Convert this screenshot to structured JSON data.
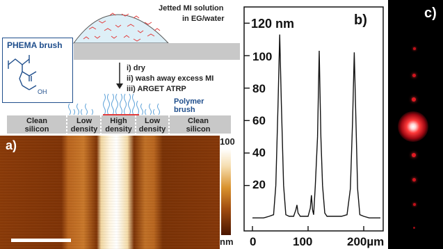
{
  "panel_a": {
    "letter": "a)",
    "jetted_line1": "Jetted MI solution",
    "jetted_line2": "in EG/water",
    "brush_title": "PHEMA brush",
    "oh_label": "OH",
    "step1": "i) dry",
    "step2": "ii) wash away excess MI",
    "step3": "iii) ARGET ATRP",
    "polymer_line1": "Polymer",
    "polymer_line2": "brush",
    "regions": [
      {
        "line1": "Clean",
        "line2": "silicon"
      },
      {
        "line1": "Low",
        "line2": "density"
      },
      {
        "line1": "High",
        "line2": "density"
      },
      {
        "line1": "Low",
        "line2": "density"
      },
      {
        "line1": "Clean",
        "line2": "silicon"
      }
    ],
    "colorbar_max": "100",
    "colorbar_unit": "nm"
  },
  "panel_b": {
    "letter": "b)",
    "y_unit_label": "120 nm",
    "y_ticks": [
      "100",
      "80",
      "60",
      "40",
      "20"
    ],
    "x_ticks": [
      "0",
      "100",
      "200µm"
    ]
  },
  "panel_c": {
    "letter": "c)"
  },
  "chart_data": {
    "type": "line",
    "title": "",
    "xlabel": "",
    "ylabel": "",
    "x_unit": "µm",
    "y_unit": "nm",
    "xlim": [
      -15,
      235
    ],
    "ylim": [
      -8,
      130
    ],
    "x": [
      0,
      10,
      20,
      30,
      38,
      42,
      46,
      49,
      52,
      56,
      60,
      66,
      74,
      78,
      80,
      82,
      86,
      92,
      100,
      104,
      106,
      108,
      110,
      113,
      117,
      120,
      123,
      126,
      130,
      134,
      140,
      150,
      160,
      170,
      176,
      180,
      183,
      186,
      189,
      193,
      200,
      210,
      220,
      230
    ],
    "y": [
      0,
      0,
      0,
      1,
      2,
      20,
      70,
      113,
      70,
      20,
      2,
      1,
      1,
      5,
      8,
      3,
      1,
      1,
      1,
      6,
      14,
      5,
      2,
      20,
      50,
      103,
      50,
      20,
      3,
      1,
      1,
      1,
      1,
      2,
      18,
      60,
      102,
      60,
      18,
      2,
      1,
      0,
      0,
      0
    ]
  }
}
